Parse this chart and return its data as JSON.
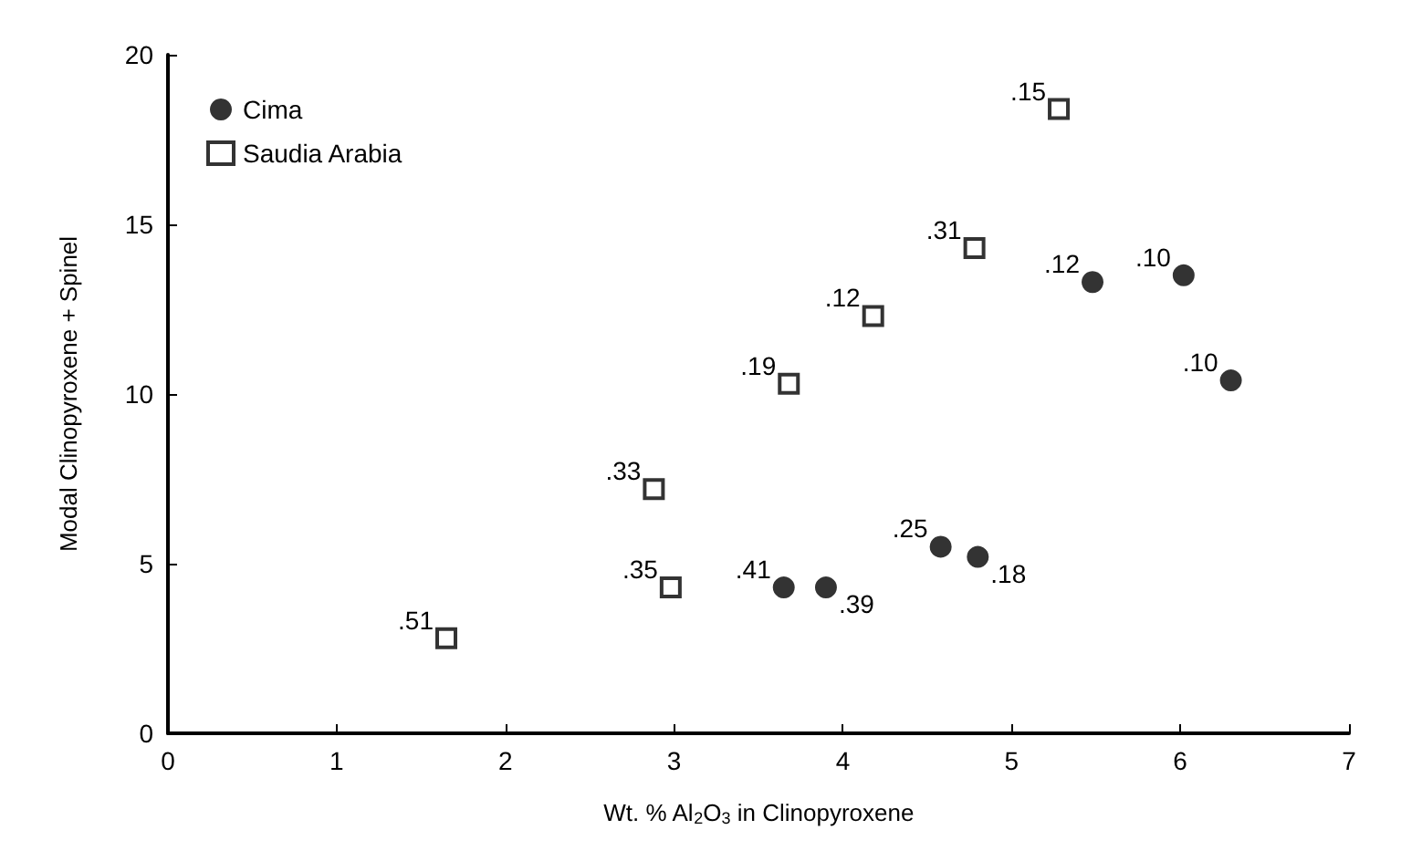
{
  "chart_data": {
    "type": "scatter",
    "xlabel": "Wt. % Al$_{2}$O$_{3}$ in Clinopyroxene",
    "ylabel": "Modal Clinopyroxene + Spinel",
    "xlim": [
      0,
      7
    ],
    "xticks": [
      0,
      1,
      2,
      3,
      4,
      5,
      6,
      7
    ],
    "ylim": [
      0,
      20
    ],
    "yticks": [
      0,
      5,
      10,
      15,
      20
    ],
    "grid": false,
    "legend": "top left",
    "series": [
      {
        "name": "Cima",
        "color": "#000000",
        "marker": "circle",
        "x": [
          3.65,
          3.9,
          4.58,
          4.8,
          5.48,
          6.02,
          6.3
        ],
        "values": [
          4.3,
          4.3,
          5.5,
          5.2,
          13.3,
          13.5,
          10.4
        ]
      },
      {
        "name": "Saudia Arabia",
        "color": "#000000",
        "marker": "square",
        "x": [
          1.65,
          2.88,
          2.98,
          3.68,
          4.18,
          4.78,
          5.28
        ],
        "values": [
          2.8,
          7.2,
          4.3,
          10.3,
          12.3,
          14.3,
          18.4
        ]
      }
    ],
    "annotations": [
      {
        "text": ".41",
        "x": 3.65,
        "y": 4.3
      },
      {
        "text": ".39",
        "x": 3.9,
        "y": 4.3
      },
      {
        "text": ".25",
        "x": 4.58,
        "y": 5.5
      },
      {
        "text": ".18",
        "x": 4.8,
        "y": 5.2
      },
      {
        "text": ".12",
        "x": 5.48,
        "y": 13.3
      },
      {
        "text": ".10",
        "x": 6.02,
        "y": 13.5
      },
      {
        "text": ".10",
        "x": 6.3,
        "y": 10.4
      },
      {
        "text": ".51",
        "x": 1.65,
        "y": 2.8
      },
      {
        "text": ".33",
        "x": 2.88,
        "y": 7.2
      },
      {
        "text": ".35",
        "x": 2.98,
        "y": 4.3
      },
      {
        "text": ".19",
        "x": 3.68,
        "y": 10.3
      },
      {
        "text": ".12",
        "x": 4.18,
        "y": 12.3
      },
      {
        "text": ".31",
        "x": 4.78,
        "y": 14.3
      },
      {
        "text": ".15",
        "x": 5.28,
        "y": 18.4
      }
    ]
  }
}
